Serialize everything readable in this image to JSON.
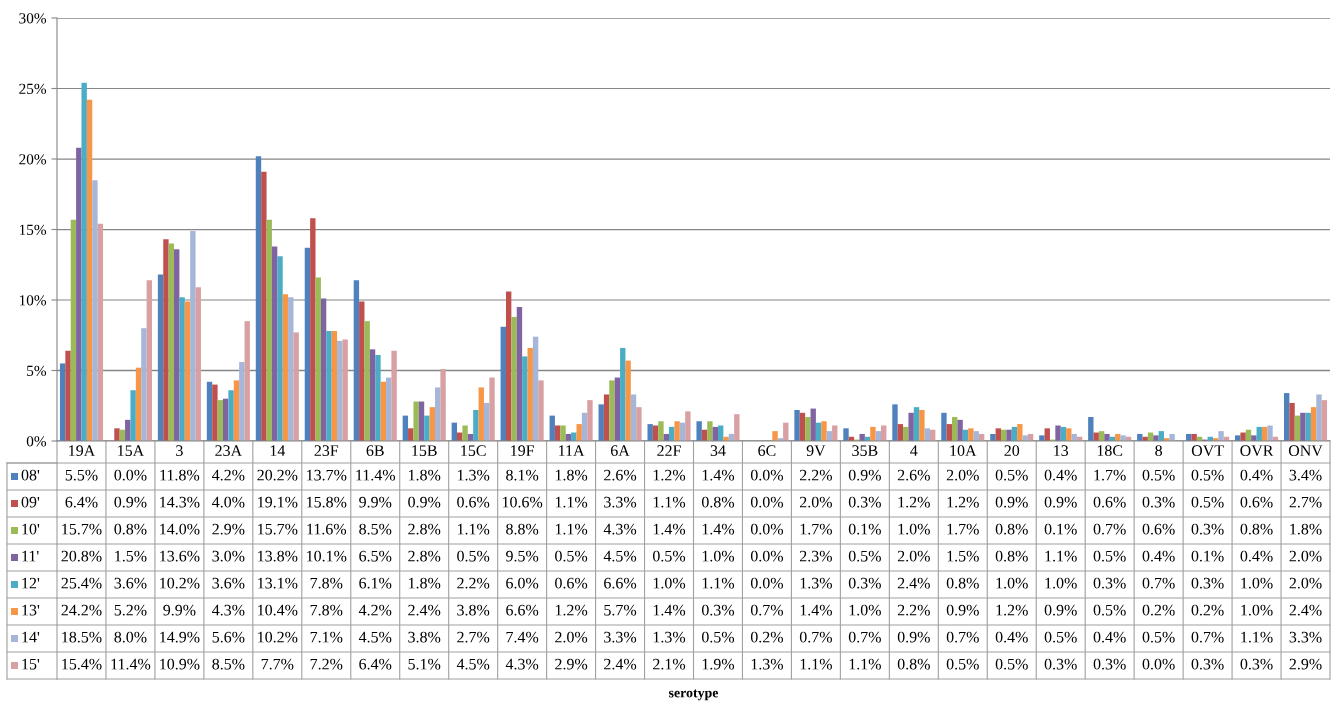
{
  "chart_data": {
    "type": "bar",
    "annotations": [
      "serotype"
    ],
    "categories": [
      "19A",
      "15A",
      "3",
      "23A",
      "14",
      "23F",
      "6B",
      "15B",
      "15C",
      "19F",
      "11A",
      "6A",
      "22F",
      "34",
      "6C",
      "9V",
      "35B",
      "4",
      "10A",
      "20",
      "13",
      "18C",
      "8",
      "OVT",
      "OVR",
      "ONV"
    ],
    "ylim": [
      0,
      30
    ],
    "yticks": [
      {
        "value": 0,
        "label": "0%"
      },
      {
        "value": 5,
        "label": "5%"
      },
      {
        "value": 10,
        "label": "10%"
      },
      {
        "value": 15,
        "label": "15%"
      },
      {
        "value": 20,
        "label": "20%"
      },
      {
        "value": 25,
        "label": "25%"
      },
      {
        "value": 30,
        "label": "30%"
      }
    ],
    "grid": "y",
    "legend": "bottom",
    "series": [
      {
        "name": "08'",
        "color": "#4f81bd",
        "values": [
          5.5,
          0.0,
          11.8,
          4.2,
          20.2,
          13.7,
          11.4,
          1.8,
          1.3,
          8.1,
          1.8,
          2.6,
          1.2,
          1.4,
          0.0,
          2.2,
          0.9,
          2.6,
          2.0,
          0.5,
          0.4,
          1.7,
          0.5,
          0.5,
          0.4,
          3.4
        ],
        "value_labels": [
          "5.5%",
          "0.0%",
          "11.8%",
          "4.2%",
          "20.2%",
          "13.7%",
          "11.4%",
          "1.8%",
          "1.3%",
          "8.1%",
          "1.8%",
          "2.6%",
          "1.2%",
          "1.4%",
          "0.0%",
          "2.2%",
          "0.9%",
          "2.6%",
          "2.0%",
          "0.5%",
          "0.4%",
          "1.7%",
          "0.5%",
          "0.5%",
          "0.4%",
          "3.4%"
        ]
      },
      {
        "name": "09'",
        "color": "#c0504d",
        "values": [
          6.4,
          0.9,
          14.3,
          4.0,
          19.1,
          15.8,
          9.9,
          0.9,
          0.6,
          10.6,
          1.1,
          3.3,
          1.1,
          0.8,
          0.0,
          2.0,
          0.3,
          1.2,
          1.2,
          0.9,
          0.9,
          0.6,
          0.3,
          0.5,
          0.6,
          2.7
        ],
        "value_labels": [
          "6.4%",
          "0.9%",
          "14.3%",
          "4.0%",
          "19.1%",
          "15.8%",
          "9.9%",
          "0.9%",
          "0.6%",
          "10.6%",
          "1.1%",
          "3.3%",
          "1.1%",
          "0.8%",
          "0.0%",
          "2.0%",
          "0.3%",
          "1.2%",
          "1.2%",
          "0.9%",
          "0.9%",
          "0.6%",
          "0.3%",
          "0.5%",
          "0.6%",
          "2.7%"
        ]
      },
      {
        "name": "10'",
        "color": "#9bbb59",
        "values": [
          15.7,
          0.8,
          14.0,
          2.9,
          15.7,
          11.6,
          8.5,
          2.8,
          1.1,
          8.8,
          1.1,
          4.3,
          1.4,
          1.4,
          0.0,
          1.7,
          0.1,
          1.0,
          1.7,
          0.8,
          0.1,
          0.7,
          0.6,
          0.3,
          0.8,
          1.8
        ],
        "value_labels": [
          "15.7%",
          "0.8%",
          "14.0%",
          "2.9%",
          "15.7%",
          "11.6%",
          "8.5%",
          "2.8%",
          "1.1%",
          "8.8%",
          "1.1%",
          "4.3%",
          "1.4%",
          "1.4%",
          "0.0%",
          "1.7%",
          "0.1%",
          "1.0%",
          "1.7%",
          "0.8%",
          "0.1%",
          "0.7%",
          "0.6%",
          "0.3%",
          "0.8%",
          "1.8%"
        ]
      },
      {
        "name": "11'",
        "color": "#8064a2",
        "values": [
          20.8,
          1.5,
          13.6,
          3.0,
          13.8,
          10.1,
          6.5,
          2.8,
          0.5,
          9.5,
          0.5,
          4.5,
          0.5,
          1.0,
          0.0,
          2.3,
          0.5,
          2.0,
          1.5,
          0.8,
          1.1,
          0.5,
          0.4,
          0.1,
          0.4,
          2.0
        ],
        "value_labels": [
          "20.8%",
          "1.5%",
          "13.6%",
          "3.0%",
          "13.8%",
          "10.1%",
          "6.5%",
          "2.8%",
          "0.5%",
          "9.5%",
          "0.5%",
          "4.5%",
          "0.5%",
          "1.0%",
          "0.0%",
          "2.3%",
          "0.5%",
          "2.0%",
          "1.5%",
          "0.8%",
          "1.1%",
          "0.5%",
          "0.4%",
          "0.1%",
          "0.4%",
          "2.0%"
        ]
      },
      {
        "name": "12'",
        "color": "#4bacc6",
        "values": [
          25.4,
          3.6,
          10.2,
          3.6,
          13.1,
          7.8,
          6.1,
          1.8,
          2.2,
          6.0,
          0.6,
          6.6,
          1.0,
          1.1,
          0.0,
          1.3,
          0.3,
          2.4,
          0.8,
          1.0,
          1.0,
          0.3,
          0.7,
          0.3,
          1.0,
          2.0
        ],
        "value_labels": [
          "25.4%",
          "3.6%",
          "10.2%",
          "3.6%",
          "13.1%",
          "7.8%",
          "6.1%",
          "1.8%",
          "2.2%",
          "6.0%",
          "0.6%",
          "6.6%",
          "1.0%",
          "1.1%",
          "0.0%",
          "1.3%",
          "0.3%",
          "2.4%",
          "0.8%",
          "1.0%",
          "1.0%",
          "0.3%",
          "0.7%",
          "0.3%",
          "1.0%",
          "2.0%"
        ]
      },
      {
        "name": "13'",
        "color": "#f79646",
        "values": [
          24.2,
          5.2,
          9.9,
          4.3,
          10.4,
          7.8,
          4.2,
          2.4,
          3.8,
          6.6,
          1.2,
          5.7,
          1.4,
          0.3,
          0.7,
          1.4,
          1.0,
          2.2,
          0.9,
          1.2,
          0.9,
          0.5,
          0.2,
          0.2,
          1.0,
          2.4
        ],
        "value_labels": [
          "24.2%",
          "5.2%",
          "9.9%",
          "4.3%",
          "10.4%",
          "7.8%",
          "4.2%",
          "2.4%",
          "3.8%",
          "6.6%",
          "1.2%",
          "5.7%",
          "1.4%",
          "0.3%",
          "0.7%",
          "1.4%",
          "1.0%",
          "2.2%",
          "0.9%",
          "1.2%",
          "0.9%",
          "0.5%",
          "0.2%",
          "0.2%",
          "1.0%",
          "2.4%"
        ]
      },
      {
        "name": "14'",
        "color": "#a5b6d8",
        "values": [
          18.5,
          8.0,
          14.9,
          5.6,
          10.2,
          7.1,
          4.5,
          3.8,
          2.7,
          7.4,
          2.0,
          3.3,
          1.3,
          0.5,
          0.2,
          0.7,
          0.7,
          0.9,
          0.7,
          0.4,
          0.5,
          0.4,
          0.5,
          0.7,
          1.1,
          3.3
        ],
        "value_labels": [
          "18.5%",
          "8.0%",
          "14.9%",
          "5.6%",
          "10.2%",
          "7.1%",
          "4.5%",
          "3.8%",
          "2.7%",
          "7.4%",
          "2.0%",
          "3.3%",
          "1.3%",
          "0.5%",
          "0.2%",
          "0.7%",
          "0.7%",
          "0.9%",
          "0.7%",
          "0.4%",
          "0.5%",
          "0.4%",
          "0.5%",
          "0.7%",
          "1.1%",
          "3.3%"
        ]
      },
      {
        "name": "15'",
        "color": "#d8a0a2",
        "values": [
          15.4,
          11.4,
          10.9,
          8.5,
          7.7,
          7.2,
          6.4,
          5.1,
          4.5,
          4.3,
          2.9,
          2.4,
          2.1,
          1.9,
          1.3,
          1.1,
          1.1,
          0.8,
          0.5,
          0.5,
          0.3,
          0.3,
          0.0,
          0.3,
          0.3,
          2.9
        ],
        "value_labels": [
          "15.4%",
          "11.4%",
          "10.9%",
          "8.5%",
          "7.7%",
          "7.2%",
          "6.4%",
          "5.1%",
          "4.5%",
          "4.3%",
          "2.9%",
          "2.4%",
          "2.1%",
          "1.9%",
          "1.3%",
          "1.1%",
          "1.1%",
          "0.8%",
          "0.5%",
          "0.5%",
          "0.3%",
          "0.3%",
          "0.0%",
          "0.3%",
          "0.3%",
          "2.9%"
        ]
      }
    ]
  }
}
